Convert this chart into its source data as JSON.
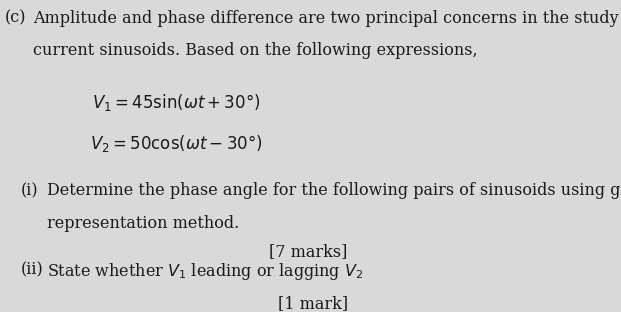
{
  "background_color": "#d9d9d9",
  "text_color": "#1a1a1a",
  "label_c": "(c)",
  "line1": "Amplitude and phase difference are two principal concerns in the study of voltage and",
  "line2": "current sinusoids. Based on the following expressions,",
  "eq1": "$V_1 = 45\\sin(\\omega t + 30°)$",
  "eq2": "$V_2 = 50\\cos(\\omega t - 30°)$",
  "sub_i": "(i)",
  "line_i1": "Determine the phase angle for the following pairs of sinusoids using graphical",
  "line_i2": "representation method.",
  "marks_i": "[7 marks]",
  "sub_ii": "(ii)",
  "line_ii": "State whether $V_1$ leading or lagging $V_2$",
  "marks_ii": "[1 mark]",
  "body_fontsize": 11.5,
  "marks_fontsize": 11.5
}
